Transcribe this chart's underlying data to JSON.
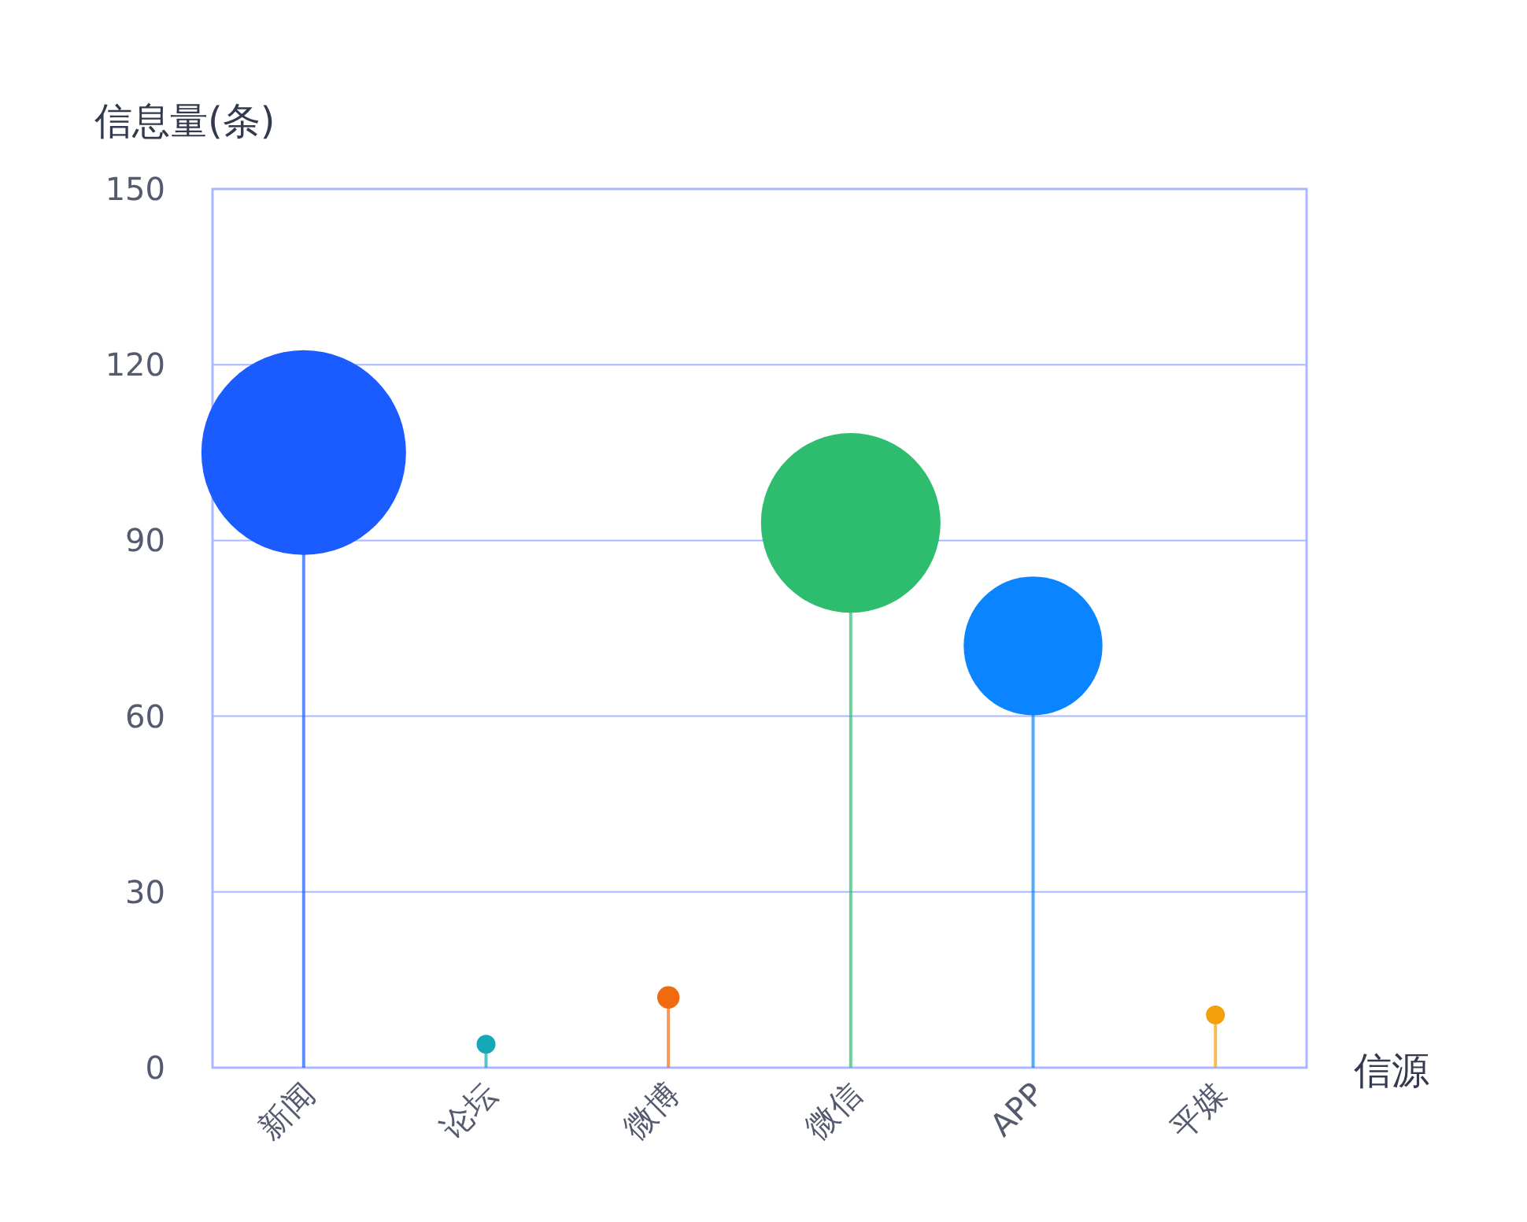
{
  "chart_data": {
    "type": "lollipop",
    "ylabel": "信息量(条)",
    "xlabel": "信源",
    "categories": [
      "新闻",
      "论坛",
      "微博",
      "微信",
      "APP",
      "平媒"
    ],
    "values": [
      105,
      4,
      12,
      93,
      72,
      9
    ],
    "sizes": [
      1,
      0.0085,
      0.012,
      0.77,
      0.46,
      0.0085
    ],
    "colors": [
      "#1a5cff",
      "#14a8b8",
      "#f26a10",
      "#2ebd6e",
      "#0a85ff",
      "#f5a00a"
    ],
    "ylim": [
      0,
      150
    ],
    "yticks": [
      0,
      30,
      60,
      90,
      120,
      150
    ],
    "grid": "y"
  }
}
